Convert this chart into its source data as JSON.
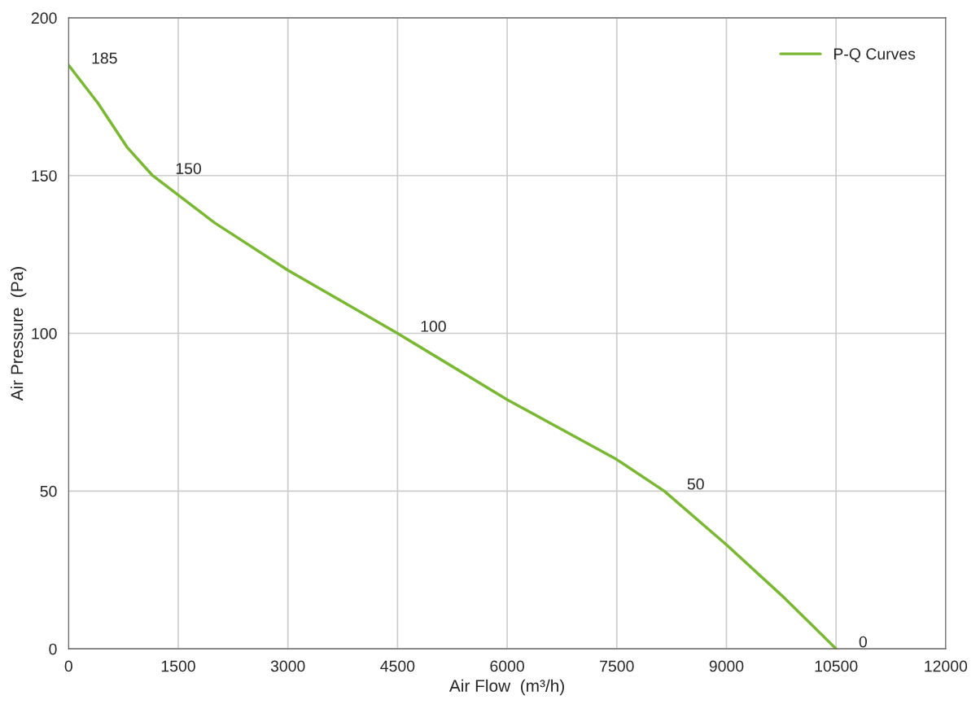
{
  "chart_data": {
    "type": "line",
    "xlabel": "Air Flow  (m³/h)",
    "ylabel": "Air Pressure  (Pa)",
    "x": [
      0,
      400,
      800,
      1150,
      2000,
      3000,
      4500,
      6000,
      7500,
      8150,
      9000,
      9800,
      10500
    ],
    "series": [
      {
        "name": "P-Q Curves",
        "color": "#7ab833",
        "values": [
          185,
          173,
          159,
          150,
          135,
          120,
          100,
          79,
          60,
          50,
          33,
          16,
          0
        ],
        "value_labels": [
          "185",
          null,
          null,
          "150",
          null,
          null,
          "100",
          null,
          null,
          "50",
          null,
          null,
          "0"
        ]
      }
    ],
    "xlim": [
      0,
      12000
    ],
    "xticks": [
      0,
      1500,
      3000,
      4500,
      6000,
      7500,
      9000,
      10500,
      12000
    ],
    "ylim": [
      0,
      200
    ],
    "yticks": [
      0,
      50,
      100,
      150,
      200
    ],
    "grid": true,
    "legend": "top right",
    "marker": "none",
    "line_style": "solid"
  }
}
